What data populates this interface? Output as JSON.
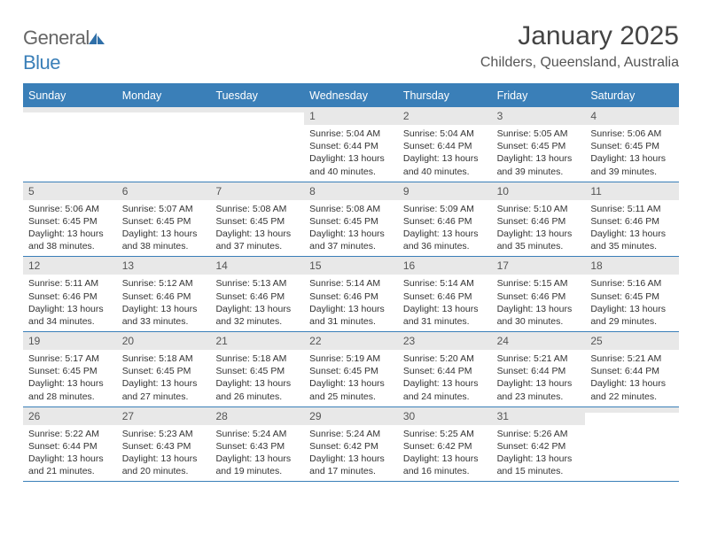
{
  "logo": {
    "general": "General",
    "blue": "Blue"
  },
  "title": "January 2025",
  "location": "Childers, Queensland, Australia",
  "colors": {
    "header_bg": "#3a7fb8",
    "daynum_bg": "#e8e8e8",
    "text": "#333333",
    "background": "#ffffff"
  },
  "day_names": [
    "Sunday",
    "Monday",
    "Tuesday",
    "Wednesday",
    "Thursday",
    "Friday",
    "Saturday"
  ],
  "weeks": [
    [
      {
        "blank": true
      },
      {
        "blank": true
      },
      {
        "blank": true
      },
      {
        "day": "1",
        "sunrise": "Sunrise: 5:04 AM",
        "sunset": "Sunset: 6:44 PM",
        "dl1": "Daylight: 13 hours",
        "dl2": "and 40 minutes."
      },
      {
        "day": "2",
        "sunrise": "Sunrise: 5:04 AM",
        "sunset": "Sunset: 6:44 PM",
        "dl1": "Daylight: 13 hours",
        "dl2": "and 40 minutes."
      },
      {
        "day": "3",
        "sunrise": "Sunrise: 5:05 AM",
        "sunset": "Sunset: 6:45 PM",
        "dl1": "Daylight: 13 hours",
        "dl2": "and 39 minutes."
      },
      {
        "day": "4",
        "sunrise": "Sunrise: 5:06 AM",
        "sunset": "Sunset: 6:45 PM",
        "dl1": "Daylight: 13 hours",
        "dl2": "and 39 minutes."
      }
    ],
    [
      {
        "day": "5",
        "sunrise": "Sunrise: 5:06 AM",
        "sunset": "Sunset: 6:45 PM",
        "dl1": "Daylight: 13 hours",
        "dl2": "and 38 minutes."
      },
      {
        "day": "6",
        "sunrise": "Sunrise: 5:07 AM",
        "sunset": "Sunset: 6:45 PM",
        "dl1": "Daylight: 13 hours",
        "dl2": "and 38 minutes."
      },
      {
        "day": "7",
        "sunrise": "Sunrise: 5:08 AM",
        "sunset": "Sunset: 6:45 PM",
        "dl1": "Daylight: 13 hours",
        "dl2": "and 37 minutes."
      },
      {
        "day": "8",
        "sunrise": "Sunrise: 5:08 AM",
        "sunset": "Sunset: 6:45 PM",
        "dl1": "Daylight: 13 hours",
        "dl2": "and 37 minutes."
      },
      {
        "day": "9",
        "sunrise": "Sunrise: 5:09 AM",
        "sunset": "Sunset: 6:46 PM",
        "dl1": "Daylight: 13 hours",
        "dl2": "and 36 minutes."
      },
      {
        "day": "10",
        "sunrise": "Sunrise: 5:10 AM",
        "sunset": "Sunset: 6:46 PM",
        "dl1": "Daylight: 13 hours",
        "dl2": "and 35 minutes."
      },
      {
        "day": "11",
        "sunrise": "Sunrise: 5:11 AM",
        "sunset": "Sunset: 6:46 PM",
        "dl1": "Daylight: 13 hours",
        "dl2": "and 35 minutes."
      }
    ],
    [
      {
        "day": "12",
        "sunrise": "Sunrise: 5:11 AM",
        "sunset": "Sunset: 6:46 PM",
        "dl1": "Daylight: 13 hours",
        "dl2": "and 34 minutes."
      },
      {
        "day": "13",
        "sunrise": "Sunrise: 5:12 AM",
        "sunset": "Sunset: 6:46 PM",
        "dl1": "Daylight: 13 hours",
        "dl2": "and 33 minutes."
      },
      {
        "day": "14",
        "sunrise": "Sunrise: 5:13 AM",
        "sunset": "Sunset: 6:46 PM",
        "dl1": "Daylight: 13 hours",
        "dl2": "and 32 minutes."
      },
      {
        "day": "15",
        "sunrise": "Sunrise: 5:14 AM",
        "sunset": "Sunset: 6:46 PM",
        "dl1": "Daylight: 13 hours",
        "dl2": "and 31 minutes."
      },
      {
        "day": "16",
        "sunrise": "Sunrise: 5:14 AM",
        "sunset": "Sunset: 6:46 PM",
        "dl1": "Daylight: 13 hours",
        "dl2": "and 31 minutes."
      },
      {
        "day": "17",
        "sunrise": "Sunrise: 5:15 AM",
        "sunset": "Sunset: 6:46 PM",
        "dl1": "Daylight: 13 hours",
        "dl2": "and 30 minutes."
      },
      {
        "day": "18",
        "sunrise": "Sunrise: 5:16 AM",
        "sunset": "Sunset: 6:45 PM",
        "dl1": "Daylight: 13 hours",
        "dl2": "and 29 minutes."
      }
    ],
    [
      {
        "day": "19",
        "sunrise": "Sunrise: 5:17 AM",
        "sunset": "Sunset: 6:45 PM",
        "dl1": "Daylight: 13 hours",
        "dl2": "and 28 minutes."
      },
      {
        "day": "20",
        "sunrise": "Sunrise: 5:18 AM",
        "sunset": "Sunset: 6:45 PM",
        "dl1": "Daylight: 13 hours",
        "dl2": "and 27 minutes."
      },
      {
        "day": "21",
        "sunrise": "Sunrise: 5:18 AM",
        "sunset": "Sunset: 6:45 PM",
        "dl1": "Daylight: 13 hours",
        "dl2": "and 26 minutes."
      },
      {
        "day": "22",
        "sunrise": "Sunrise: 5:19 AM",
        "sunset": "Sunset: 6:45 PM",
        "dl1": "Daylight: 13 hours",
        "dl2": "and 25 minutes."
      },
      {
        "day": "23",
        "sunrise": "Sunrise: 5:20 AM",
        "sunset": "Sunset: 6:44 PM",
        "dl1": "Daylight: 13 hours",
        "dl2": "and 24 minutes."
      },
      {
        "day": "24",
        "sunrise": "Sunrise: 5:21 AM",
        "sunset": "Sunset: 6:44 PM",
        "dl1": "Daylight: 13 hours",
        "dl2": "and 23 minutes."
      },
      {
        "day": "25",
        "sunrise": "Sunrise: 5:21 AM",
        "sunset": "Sunset: 6:44 PM",
        "dl1": "Daylight: 13 hours",
        "dl2": "and 22 minutes."
      }
    ],
    [
      {
        "day": "26",
        "sunrise": "Sunrise: 5:22 AM",
        "sunset": "Sunset: 6:44 PM",
        "dl1": "Daylight: 13 hours",
        "dl2": "and 21 minutes."
      },
      {
        "day": "27",
        "sunrise": "Sunrise: 5:23 AM",
        "sunset": "Sunset: 6:43 PM",
        "dl1": "Daylight: 13 hours",
        "dl2": "and 20 minutes."
      },
      {
        "day": "28",
        "sunrise": "Sunrise: 5:24 AM",
        "sunset": "Sunset: 6:43 PM",
        "dl1": "Daylight: 13 hours",
        "dl2": "and 19 minutes."
      },
      {
        "day": "29",
        "sunrise": "Sunrise: 5:24 AM",
        "sunset": "Sunset: 6:42 PM",
        "dl1": "Daylight: 13 hours",
        "dl2": "and 17 minutes."
      },
      {
        "day": "30",
        "sunrise": "Sunrise: 5:25 AM",
        "sunset": "Sunset: 6:42 PM",
        "dl1": "Daylight: 13 hours",
        "dl2": "and 16 minutes."
      },
      {
        "day": "31",
        "sunrise": "Sunrise: 5:26 AM",
        "sunset": "Sunset: 6:42 PM",
        "dl1": "Daylight: 13 hours",
        "dl2": "and 15 minutes."
      },
      {
        "blank": true
      }
    ]
  ]
}
